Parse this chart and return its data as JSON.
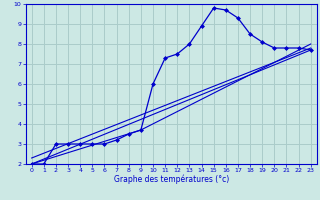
{
  "title": "Graphe des températures (°c)",
  "bg_color": "#cce8e4",
  "grid_color": "#aaccca",
  "line_color": "#0000cc",
  "xlim": [
    -0.5,
    23.5
  ],
  "ylim": [
    2,
    10
  ],
  "xticks": [
    0,
    1,
    2,
    3,
    4,
    5,
    6,
    7,
    8,
    9,
    10,
    11,
    12,
    13,
    14,
    15,
    16,
    17,
    18,
    19,
    20,
    21,
    22,
    23
  ],
  "yticks": [
    2,
    3,
    4,
    5,
    6,
    7,
    8,
    9,
    10
  ],
  "line1_x": [
    0,
    1,
    2,
    3,
    4,
    5,
    6,
    7,
    8,
    9,
    10,
    11,
    12,
    13,
    14,
    15,
    16,
    17,
    18,
    19,
    20,
    21,
    22,
    23
  ],
  "line1_y": [
    2.0,
    2.0,
    3.0,
    3.0,
    3.0,
    3.0,
    3.0,
    3.2,
    3.5,
    3.7,
    6.0,
    7.3,
    7.5,
    8.0,
    8.9,
    9.8,
    9.7,
    9.3,
    8.5,
    8.1,
    7.8,
    7.8,
    7.8,
    7.7
  ],
  "line2_x": [
    0,
    23
  ],
  "line2_y": [
    2.0,
    7.7
  ],
  "line3_x": [
    0,
    23
  ],
  "line3_y": [
    2.3,
    7.8
  ],
  "line4_x": [
    0,
    9,
    23
  ],
  "line4_y": [
    2.0,
    3.7,
    8.0
  ]
}
